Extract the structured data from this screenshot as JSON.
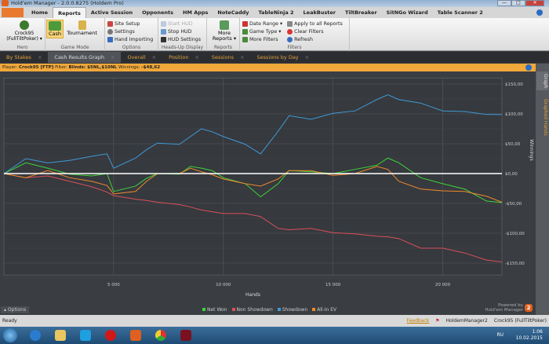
{
  "window": {
    "title": "Hold'em Manager - 2.0.0.8275 (Holdem Pro)",
    "min": "—",
    "max": "□",
    "close": "✕"
  },
  "menu": [
    "Home",
    "Reports",
    "Active Session",
    "Opponents",
    "HM Apps",
    "NoteCaddy",
    "TableNinja 2",
    "LeakBuster",
    "TiltBreaker",
    "SitNGo Wizard",
    "Table Scanner 2"
  ],
  "ribbon": {
    "hero": {
      "label": "Crock95 (FullTiltPoker) ▾",
      "group": "Hero"
    },
    "game_mode": {
      "cash": "Cash",
      "tournament": "Tournament",
      "group": "Game Mode"
    },
    "options": {
      "items": [
        "Site Setup",
        "Settings",
        "Hand Importing"
      ],
      "group": "Options"
    },
    "hud": {
      "items": [
        "Start HUD",
        "Stop HUD",
        "HUD Settings"
      ],
      "group": "Heads-Up Display"
    },
    "reports": {
      "label": "More Reports ▾",
      "group": "Reports"
    },
    "filters": {
      "col1": [
        "Date Range ▾",
        "Game Type ▾",
        "More Filters"
      ],
      "col2": [
        "Apply to all Reports",
        "Clear Filters",
        "Refresh"
      ],
      "group": "Filters"
    }
  },
  "doc_tabs": [
    "By Stakes",
    "Cash Results Graph",
    "Overall",
    "Position",
    "Sessions",
    "Sessions by Day"
  ],
  "filter_bar": {
    "player_label": "Player:",
    "player": "Crock95 [FTP]",
    "filter_label": "Filter:",
    "filter": "Blinds: $5NL,$10NL",
    "winnings_label": "Winnings:",
    "winnings": "-$48,62"
  },
  "side_tabs": [
    "Graph",
    "Graphed Hands"
  ],
  "options_label": "▴ Options",
  "powered": {
    "line1": "Powered by",
    "line2": "Hold'em Manager",
    "logo": "2"
  },
  "status": {
    "text": "Ready",
    "feedback": "Feedback",
    "app": "HoldemManager2",
    "player": "Crock95 (FullTiltPoker)"
  },
  "taskbar": {
    "lang": "RU",
    "time": "1:06",
    "date": "10.02.2015"
  },
  "chart_data": {
    "type": "line",
    "xlabel": "Hands",
    "ylabel": "Winnings",
    "xlim": [
      0,
      22700
    ],
    "ylim": [
      -170,
      160
    ],
    "xticks": [
      5000,
      10000,
      15000,
      20000
    ],
    "xtick_labels": [
      "5 000",
      "10 000",
      "15 000",
      "20 000"
    ],
    "yticks": [
      150,
      100,
      50,
      0,
      -50,
      -100,
      -150
    ],
    "ytick_labels": [
      "$150,00",
      "$100,00",
      "$50,00",
      "$0,00",
      "-$50,00",
      "-$100,00",
      "-$150,00"
    ],
    "grid": true,
    "legend": "bottom",
    "x": [
      0,
      1000,
      2000,
      3000,
      4000,
      4700,
      5000,
      6000,
      6500,
      7000,
      8000,
      8500,
      9000,
      9500,
      10000,
      11000,
      11700,
      12500,
      13000,
      14000,
      15000,
      16000,
      17000,
      17500,
      18000,
      19000,
      20000,
      21000,
      22000,
      22700
    ],
    "series": [
      {
        "name": "Net Won",
        "color": "#3fd43a",
        "values": [
          0,
          18,
          9,
          -1,
          -4,
          0,
          -30,
          -21,
          -8,
          0,
          -1,
          12,
          9,
          5,
          -7,
          -17,
          -39,
          -17,
          5,
          3,
          0,
          7,
          14,
          26,
          18,
          -7,
          -17,
          -26,
          -46,
          -48.62
        ]
      },
      {
        "name": "Non Showdown",
        "color": "#d9505a",
        "values": [
          0,
          -7,
          -4,
          -13,
          -22,
          -31,
          -37,
          -43,
          -45,
          -48,
          -52,
          -56,
          -61,
          -64,
          -67,
          -67,
          -72,
          -92,
          -94,
          -92,
          -99,
          -101,
          -105,
          -106,
          -109,
          -125,
          -125,
          -133,
          -145,
          -148
        ]
      },
      {
        "name": "Showdown",
        "color": "#3f9ad6",
        "values": [
          0,
          25,
          18,
          22,
          29,
          33,
          9,
          26,
          40,
          51,
          49,
          62,
          75,
          70,
          62,
          49,
          33,
          71,
          97,
          91,
          101,
          105,
          124,
          132,
          124,
          118,
          105,
          104,
          99,
          99
        ]
      },
      {
        "name": "All-In EV",
        "color": "#f08a2a",
        "values": [
          0,
          -7,
          5,
          -7,
          -13,
          -20,
          -34,
          -30,
          -13,
          0,
          0,
          9,
          3,
          -2,
          -9,
          -17,
          -21,
          -9,
          5,
          5,
          -3,
          0,
          12,
          7,
          -13,
          -26,
          -29,
          -30,
          -38,
          -48
        ]
      }
    ],
    "zero_line_color": "#ffffff"
  }
}
